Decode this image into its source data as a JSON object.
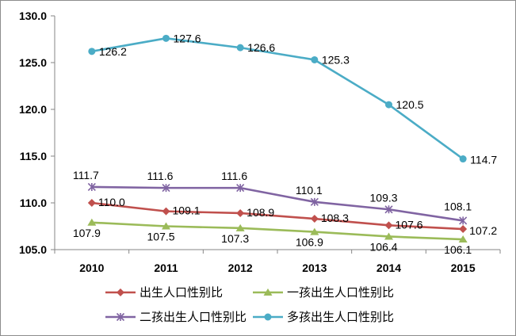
{
  "chart_data": {
    "type": "line",
    "title": "",
    "xlabel": "",
    "ylabel": "",
    "categories": [
      "2010",
      "2011",
      "2012",
      "2013",
      "2014",
      "2015"
    ],
    "ylim": [
      105.0,
      130.0
    ],
    "yticks": [
      "105.0",
      "110.0",
      "115.0",
      "120.0",
      "125.0",
      "130.0"
    ],
    "grid": false,
    "legend_position": "bottom",
    "series": [
      {
        "name": "出生人口性别比",
        "values": [
          110.0,
          109.1,
          108.9,
          108.3,
          107.6,
          107.2
        ],
        "labels": [
          "110.0",
          "109.1",
          "108.9",
          "108.3",
          "107.6",
          "107.2"
        ],
        "color": "#c0504d",
        "marker": "diamond"
      },
      {
        "name": "一孩出生人口性别比",
        "values": [
          107.9,
          107.5,
          107.3,
          106.9,
          106.4,
          106.1
        ],
        "labels": [
          "107.9",
          "107.5",
          "107.3",
          "106.9",
          "106.4",
          "106.1"
        ],
        "color": "#9bbb59",
        "marker": "triangle"
      },
      {
        "name": "二孩出生人口性别比",
        "values": [
          111.7,
          111.6,
          111.6,
          110.1,
          109.3,
          108.1
        ],
        "labels": [
          "111.7",
          "111.6",
          "111.6",
          "110.1",
          "109.3",
          "108.1"
        ],
        "color": "#8064a2",
        "marker": "star"
      },
      {
        "name": "多孩出生人口性别比",
        "values": [
          126.2,
          127.6,
          126.6,
          125.3,
          120.5,
          114.7
        ],
        "labels": [
          "126.2",
          "127.6",
          "126.6",
          "125.3",
          "120.5",
          "114.7"
        ],
        "color": "#4bacc6",
        "marker": "circle"
      }
    ]
  }
}
